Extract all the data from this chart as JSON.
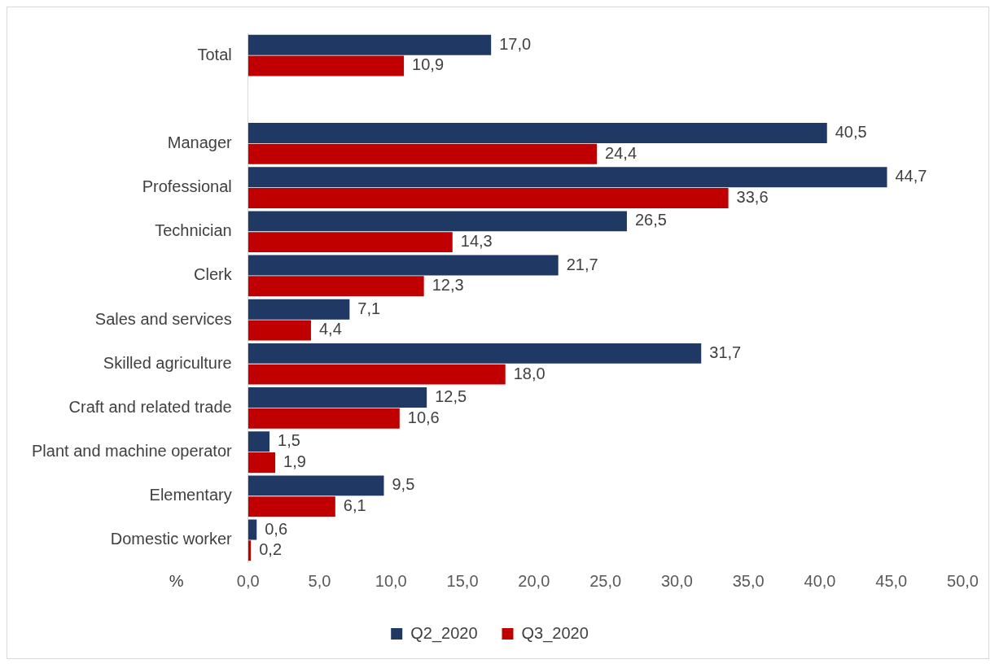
{
  "chart_data": {
    "type": "bar",
    "orientation": "horizontal",
    "xlabel": "%",
    "categories": [
      "Total",
      null,
      "Manager",
      "Professional",
      "Technician",
      "Clerk",
      "Sales and services",
      "Skilled agriculture",
      "Craft and related trade",
      "Plant and machine operator",
      "Elementary",
      "Domestic worker"
    ],
    "series": [
      {
        "name": "Q2_2020",
        "color": "#1f3864",
        "values": [
          17.0,
          null,
          40.5,
          44.7,
          26.5,
          21.7,
          7.1,
          31.7,
          12.5,
          1.5,
          9.5,
          0.6
        ],
        "value_labels": [
          "17,0",
          null,
          "40,5",
          "44,7",
          "26,5",
          "21,7",
          "7,1",
          "31,7",
          "12,5",
          "1,5",
          "9,5",
          "0,6"
        ]
      },
      {
        "name": "Q3_2020",
        "color": "#c00000",
        "values": [
          10.9,
          null,
          24.4,
          33.6,
          14.3,
          12.3,
          4.4,
          18.0,
          10.6,
          1.9,
          6.1,
          0.2
        ],
        "value_labels": [
          "10,9",
          null,
          "24,4",
          "33,6",
          "14,3",
          "12,3",
          "4,4",
          "18,0",
          "10,6",
          "1,9",
          "6,1",
          "0,2"
        ]
      }
    ],
    "xlim": [
      0,
      50
    ],
    "xticks": [
      {
        "value": 0,
        "label": "0,0"
      },
      {
        "value": 5,
        "label": "5,0"
      },
      {
        "value": 10,
        "label": "10,0"
      },
      {
        "value": 15,
        "label": "15,0"
      },
      {
        "value": 20,
        "label": "20,0"
      },
      {
        "value": 25,
        "label": "25,0"
      },
      {
        "value": 30,
        "label": "30,0"
      },
      {
        "value": 35,
        "label": "35,0"
      },
      {
        "value": 40,
        "label": "40,0"
      },
      {
        "value": 45,
        "label": "45,0"
      },
      {
        "value": 50,
        "label": "50,0"
      }
    ],
    "grid": false,
    "legend": "bottom"
  }
}
